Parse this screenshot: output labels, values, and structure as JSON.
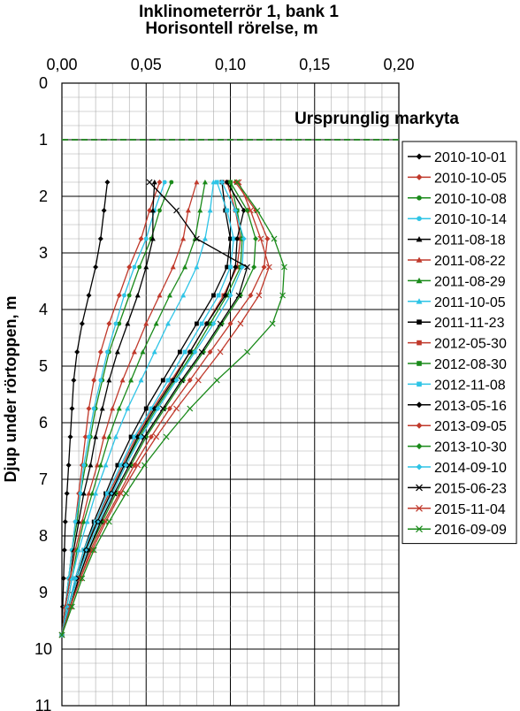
{
  "chart_data": {
    "type": "line",
    "title": "Inklinometerrör 1, bank 1",
    "xlabel": "Horisontell rörelse, m",
    "ylabel": "Djup under rörtoppen, m",
    "xlim": [
      0.0,
      0.2
    ],
    "ylim": [
      0,
      11
    ],
    "y_inverted": true,
    "x_ticks": [
      "0,00",
      "0,05",
      "0,10",
      "0,15",
      "0,20"
    ],
    "y_ticks": [
      "0",
      "1",
      "2",
      "3",
      "4",
      "5",
      "6",
      "7",
      "8",
      "9",
      "10",
      "11"
    ],
    "grid": "on",
    "legend_position": "right",
    "annotation": {
      "text": "Ursprunglig markyta",
      "depth": 1.0,
      "color": "#2e8b2e"
    },
    "depths": [
      1.75,
      2.25,
      2.75,
      3.25,
      3.75,
      4.25,
      4.75,
      5.25,
      5.75,
      6.25,
      6.75,
      7.25,
      7.75,
      8.25,
      8.75,
      9.25,
      9.75
    ],
    "series": [
      {
        "name": "2010-10-01",
        "color": "#000000",
        "marker": "diamond",
        "values": [
          0.027,
          0.025,
          0.023,
          0.02,
          0.016,
          0.012,
          0.009,
          0.007,
          0.006,
          0.005,
          0.004,
          0.003,
          0.002,
          0.0015,
          0.001,
          0.0005,
          0.0
        ]
      },
      {
        "name": "2010-10-05",
        "color": "#c0392b",
        "marker": "diamond",
        "values": [
          0.058,
          0.052,
          0.047,
          0.04,
          0.034,
          0.028,
          0.023,
          0.019,
          0.016,
          0.014,
          0.012,
          0.01,
          0.008,
          0.006,
          0.004,
          0.002,
          0.0
        ]
      },
      {
        "name": "2010-10-08",
        "color": "#1a8a1a",
        "marker": "circle",
        "values": [
          0.065,
          0.058,
          0.053,
          0.046,
          0.04,
          0.034,
          0.028,
          0.024,
          0.02,
          0.017,
          0.014,
          0.011,
          0.009,
          0.006,
          0.004,
          0.002,
          0.0
        ]
      },
      {
        "name": "2010-10-14",
        "color": "#2ec4e6",
        "marker": "circle",
        "values": [
          0.061,
          0.055,
          0.05,
          0.043,
          0.037,
          0.032,
          0.027,
          0.023,
          0.019,
          0.016,
          0.013,
          0.011,
          0.008,
          0.006,
          0.004,
          0.002,
          0.0
        ]
      },
      {
        "name": "2011-08-18",
        "color": "#000000",
        "marker": "triangle",
        "values": [
          0.055,
          0.054,
          0.054,
          0.05,
          0.045,
          0.039,
          0.033,
          0.028,
          0.024,
          0.02,
          0.017,
          0.013,
          0.01,
          0.007,
          0.005,
          0.002,
          0.0
        ]
      },
      {
        "name": "2011-08-22",
        "color": "#c0392b",
        "marker": "triangle",
        "values": [
          0.08,
          0.075,
          0.072,
          0.066,
          0.058,
          0.05,
          0.043,
          0.036,
          0.03,
          0.025,
          0.021,
          0.016,
          0.012,
          0.008,
          0.005,
          0.002,
          0.0
        ]
      },
      {
        "name": "2011-08-29",
        "color": "#1a8a1a",
        "marker": "triangle",
        "values": [
          0.085,
          0.082,
          0.079,
          0.073,
          0.064,
          0.056,
          0.048,
          0.041,
          0.034,
          0.028,
          0.023,
          0.018,
          0.013,
          0.009,
          0.006,
          0.003,
          0.0
        ]
      },
      {
        "name": "2011-10-05",
        "color": "#2ec4e6",
        "marker": "triangle",
        "values": [
          0.09,
          0.088,
          0.085,
          0.08,
          0.072,
          0.063,
          0.055,
          0.047,
          0.039,
          0.032,
          0.026,
          0.02,
          0.015,
          0.01,
          0.006,
          0.003,
          0.0
        ]
      },
      {
        "name": "2011-11-23",
        "color": "#000000",
        "marker": "square",
        "values": [
          0.095,
          0.097,
          0.1,
          0.098,
          0.09,
          0.08,
          0.07,
          0.06,
          0.05,
          0.041,
          0.033,
          0.026,
          0.019,
          0.013,
          0.008,
          0.004,
          0.0
        ]
      },
      {
        "name": "2012-05-30",
        "color": "#c0392b",
        "marker": "square",
        "values": [
          0.098,
          0.103,
          0.106,
          0.104,
          0.096,
          0.086,
          0.076,
          0.065,
          0.054,
          0.044,
          0.036,
          0.028,
          0.02,
          0.014,
          0.009,
          0.004,
          0.0
        ]
      },
      {
        "name": "2012-08-30",
        "color": "#1a8a1a",
        "marker": "square",
        "values": [
          0.1,
          0.104,
          0.107,
          0.106,
          0.098,
          0.088,
          0.078,
          0.067,
          0.056,
          0.046,
          0.037,
          0.029,
          0.021,
          0.014,
          0.009,
          0.004,
          0.0
        ]
      },
      {
        "name": "2012-11-08",
        "color": "#2ec4e6",
        "marker": "square",
        "values": [
          0.092,
          0.098,
          0.102,
          0.1,
          0.093,
          0.083,
          0.073,
          0.063,
          0.053,
          0.043,
          0.035,
          0.027,
          0.02,
          0.013,
          0.008,
          0.004,
          0.0
        ]
      },
      {
        "name": "2013-05-16",
        "color": "#000000",
        "marker": "diamond",
        "values": [
          0.098,
          0.108,
          0.104,
          0.103,
          0.097,
          0.086,
          0.076,
          0.066,
          0.055,
          0.045,
          0.037,
          0.029,
          0.021,
          0.014,
          0.009,
          0.004,
          0.0
        ]
      },
      {
        "name": "2013-09-05",
        "color": "#c0392b",
        "marker": "diamond",
        "values": [
          0.103,
          0.115,
          0.122,
          0.12,
          0.112,
          0.1,
          0.088,
          0.076,
          0.064,
          0.053,
          0.043,
          0.034,
          0.025,
          0.017,
          0.011,
          0.005,
          0.0
        ]
      },
      {
        "name": "2013-10-30",
        "color": "#1a8a1a",
        "marker": "diamond",
        "values": [
          0.1,
          0.11,
          0.115,
          0.114,
          0.106,
          0.095,
          0.084,
          0.072,
          0.061,
          0.05,
          0.041,
          0.032,
          0.024,
          0.016,
          0.01,
          0.005,
          0.0
        ]
      },
      {
        "name": "2014-09-10",
        "color": "#2ec4e6",
        "marker": "diamond",
        "values": [
          0.095,
          0.103,
          0.108,
          0.107,
          0.1,
          0.09,
          0.079,
          0.068,
          0.057,
          0.047,
          0.038,
          0.03,
          0.022,
          0.015,
          0.009,
          0.004,
          0.0
        ]
      },
      {
        "name": "2015-06-23",
        "color": "#000000",
        "marker": "x",
        "values": [
          0.052,
          0.068,
          0.08,
          0.11,
          0.105,
          0.094,
          0.083,
          0.071,
          0.06,
          0.049,
          0.04,
          0.031,
          0.023,
          0.016,
          0.01,
          0.005,
          0.0
        ]
      },
      {
        "name": "2015-11-04",
        "color": "#c0392b",
        "marker": "x",
        "values": [
          0.105,
          0.112,
          0.118,
          0.123,
          0.117,
          0.106,
          0.094,
          0.081,
          0.068,
          0.056,
          0.045,
          0.035,
          0.026,
          0.018,
          0.011,
          0.005,
          0.0
        ]
      },
      {
        "name": "2016-09-09",
        "color": "#1a8a1a",
        "marker": "x",
        "values": [
          0.104,
          0.116,
          0.126,
          0.132,
          0.131,
          0.125,
          0.11,
          0.092,
          0.076,
          0.062,
          0.049,
          0.038,
          0.028,
          0.019,
          0.012,
          0.006,
          0.0
        ]
      }
    ]
  }
}
